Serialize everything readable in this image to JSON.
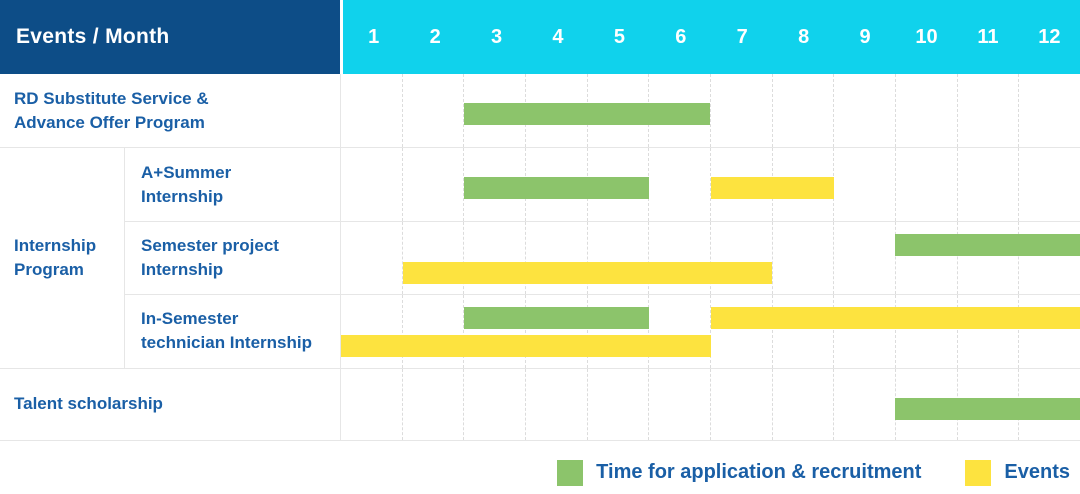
{
  "header": {
    "title": "Events / Month"
  },
  "months": [
    "1",
    "2",
    "3",
    "4",
    "5",
    "6",
    "7",
    "8",
    "9",
    "10",
    "11",
    "12"
  ],
  "colors": {
    "header_bg": "#0d4d87",
    "months_bg": "#10d2ec",
    "text_blue": "#1a5fa6",
    "green": "#8cc46b",
    "yellow": "#fde33f",
    "grid_line": "#e6e6e6",
    "grid_dash": "#dcdcdc"
  },
  "group": {
    "line1": "Internship",
    "line2": "Program"
  },
  "rows": [
    {
      "id": "rd-substitute-service",
      "line1": "RD Substitute Service &",
      "line2": "Advance Offer Program",
      "tracks": [
        [
          {
            "color": "green",
            "start": 3,
            "end": 6
          }
        ]
      ]
    },
    {
      "id": "a-summer-internship",
      "line1": "A+Summer",
      "line2": "Internship",
      "tracks": [
        [
          {
            "color": "green",
            "start": 3,
            "end": 5
          },
          {
            "color": "yellow",
            "start": 7,
            "end": 8
          }
        ]
      ]
    },
    {
      "id": "semester-project-internship",
      "line1": "Semester project",
      "line2": "Internship",
      "tracks": [
        [
          {
            "color": "green",
            "start": 10,
            "end": 12
          }
        ],
        [
          {
            "color": "yellow",
            "start": 2,
            "end": 7
          }
        ]
      ]
    },
    {
      "id": "in-semester-technician-internship",
      "line1": "In-Semester",
      "line2": "technician Internship",
      "tracks": [
        [
          {
            "color": "green",
            "start": 3,
            "end": 5
          },
          {
            "color": "yellow",
            "start": 7,
            "end": 12
          }
        ],
        [
          {
            "color": "yellow",
            "start": 1,
            "end": 6
          }
        ]
      ]
    },
    {
      "id": "talent-scholarship",
      "line1": "Talent scholarship",
      "line2": "",
      "tracks": [
        [
          {
            "color": "green",
            "start": 10,
            "end": 12
          }
        ]
      ]
    }
  ],
  "legend": [
    {
      "label": "Time for application & recruitment",
      "color_key": "green"
    },
    {
      "label": "Events",
      "color_key": "yellow"
    }
  ],
  "chart_data": {
    "type": "bar",
    "subtype": "gantt-schedule",
    "title": "Events / Month",
    "xlabel": "Month",
    "x_ticks": [
      1,
      2,
      3,
      4,
      5,
      6,
      7,
      8,
      9,
      10,
      11,
      12
    ],
    "xlim": [
      1,
      12
    ],
    "grid": true,
    "legend_position": "bottom-right",
    "legend": [
      {
        "label": "Time for application & recruitment",
        "color": "#8cc46b"
      },
      {
        "label": "Events",
        "color": "#fde33f"
      }
    ],
    "rows": [
      {
        "category": "RD Substitute Service & Advance Offer Program",
        "group": null,
        "bars": [
          {
            "kind": "application-recruitment",
            "start_month": 3,
            "end_month": 6
          }
        ]
      },
      {
        "category": "A+Summer Internship",
        "group": "Internship Program",
        "bars": [
          {
            "kind": "application-recruitment",
            "start_month": 3,
            "end_month": 5
          },
          {
            "kind": "event",
            "start_month": 7,
            "end_month": 8
          }
        ]
      },
      {
        "category": "Semester project Internship",
        "group": "Internship Program",
        "bars": [
          {
            "kind": "application-recruitment",
            "start_month": 10,
            "end_month": 12
          },
          {
            "kind": "event",
            "start_month": 2,
            "end_month": 7
          }
        ]
      },
      {
        "category": "In-Semester technician Internship",
        "group": "Internship Program",
        "bars": [
          {
            "kind": "application-recruitment",
            "start_month": 3,
            "end_month": 5
          },
          {
            "kind": "event",
            "start_month": 7,
            "end_month": 12
          },
          {
            "kind": "event",
            "start_month": 1,
            "end_month": 6
          }
        ]
      },
      {
        "category": "Talent scholarship",
        "group": null,
        "bars": [
          {
            "kind": "application-recruitment",
            "start_month": 10,
            "end_month": 12
          }
        ]
      }
    ]
  }
}
